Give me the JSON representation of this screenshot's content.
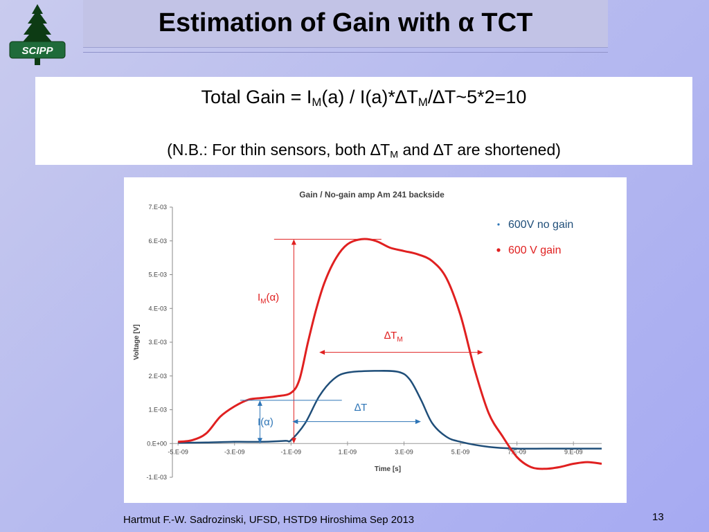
{
  "header": {
    "title": "Estimation of Gain with α TCT",
    "logo_text": "SCIPP"
  },
  "box": {
    "equation": {
      "part1": "Total Gain = I",
      "sub1": "M",
      "part2": "(a) / I(a)*∆T",
      "sub2": "M",
      "part3": "/∆T~5*2=10"
    },
    "note": {
      "part1": "(N.B.: For thin sensors, both ∆T",
      "sub1": "M",
      "part2": " and ∆T are shortened)"
    }
  },
  "chart_data": {
    "type": "line",
    "title": "Gain / No-gain amp Am 241 backside",
    "xlabel": "Time [s]",
    "ylabel": "Voltage [V]",
    "xlim": [
      -5.2e-09,
      1e-08
    ],
    "ylim": [
      -0.001,
      0.007
    ],
    "x_ticks": [
      -5e-09,
      -3e-09,
      -1e-09,
      1e-09,
      3e-09,
      5e-09,
      7e-09,
      9e-09
    ],
    "x_tick_labels": [
      "-5.E-09",
      "-3.E-09",
      "-1.E-09",
      "1.E-09",
      "3.E-09",
      "5.E-09",
      "7.E-09",
      "9.E-09"
    ],
    "y_ticks": [
      -0.001,
      0,
      0.001,
      0.002,
      0.003,
      0.004,
      0.005,
      0.006,
      0.007
    ],
    "y_tick_labels": [
      "-1.E-03",
      "0.E+00",
      "1.E-03",
      "2.E-03",
      "3.E-03",
      "4.E-03",
      "5.E-03",
      "6.E-03",
      "7.E-03"
    ],
    "legend_position": "top-right",
    "series": [
      {
        "name": "600V no gain",
        "color": "#1f4e79",
        "x": [
          -5e-09,
          -4e-09,
          -3e-09,
          -2e-09,
          -1.2e-09,
          -1e-09,
          -5e-10,
          0,
          5e-10,
          1e-09,
          2e-09,
          2.8e-09,
          3.2e-09,
          3.6e-09,
          4e-09,
          4.5e-09,
          5e-09,
          6e-09,
          7e-09,
          8e-09,
          9e-09,
          1e-08
        ],
        "y": [
          2e-05,
          3e-05,
          5e-05,
          5e-05,
          8e-05,
          0.0001,
          0.0006,
          0.0014,
          0.0019,
          0.0021,
          0.00215,
          0.00212,
          0.0019,
          0.0013,
          0.0006,
          0.0002,
          5e-05,
          -0.0001,
          -0.00015,
          -0.00015,
          -0.00015,
          -0.00015
        ]
      },
      {
        "name": "600 V gain",
        "color": "#e02020",
        "x": [
          -5e-09,
          -4.5e-09,
          -4e-09,
          -3.5e-09,
          -3e-09,
          -2.5e-09,
          -2e-09,
          -1.5e-09,
          -1e-09,
          -7e-10,
          -4e-10,
          -1e-10,
          2e-10,
          6e-10,
          1e-09,
          1.5e-09,
          2e-09,
          2.5e-09,
          3e-09,
          3.5e-09,
          4e-09,
          4.5e-09,
          5e-09,
          5.5e-09,
          6e-09,
          6.5e-09,
          7e-09,
          7.5e-09,
          8e-09,
          8.5e-09,
          9e-09,
          9.5e-09,
          1e-08
        ],
        "y": [
          5e-05,
          0.0001,
          0.0003,
          0.0008,
          0.0011,
          0.0013,
          0.00135,
          0.0014,
          0.0015,
          0.0019,
          0.003,
          0.004,
          0.0048,
          0.0055,
          0.0059,
          0.00605,
          0.006,
          0.0058,
          0.0057,
          0.0056,
          0.0054,
          0.0049,
          0.0038,
          0.0022,
          0.0009,
          0.0002,
          -0.0004,
          -0.0007,
          -0.00075,
          -0.0007,
          -0.0006,
          -0.00055,
          -0.0006
        ]
      }
    ],
    "annotations": {
      "im_alpha": {
        "base": "I",
        "sub": "M",
        "paren": "(α)"
      },
      "delta_tm": {
        "base": "∆T",
        "sub": "M"
      },
      "delta_t": "∆T",
      "i_alpha": "I(α)"
    }
  },
  "footer": {
    "author": "Hartmut F.-W. Sadrozinski, UFSD, HSTD9 Hiroshima Sep 2013",
    "page": "13"
  }
}
